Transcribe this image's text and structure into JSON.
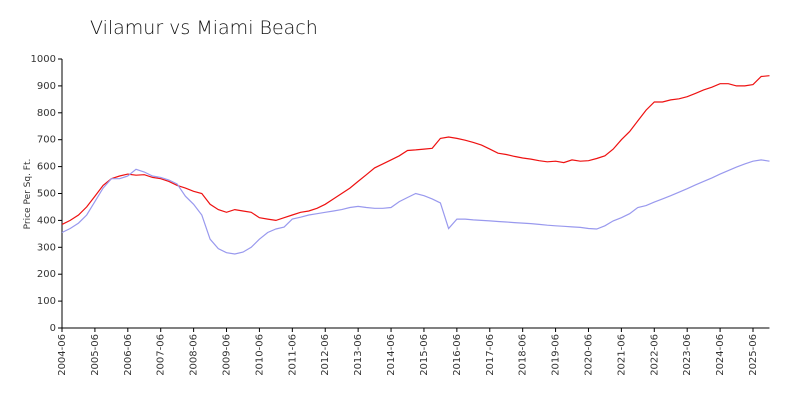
{
  "chart_data": {
    "type": "line",
    "title": "Vilamur vs Miami Beach",
    "y_label": "Price Per Sq. Ft.",
    "categories": [
      "2004-06",
      null,
      null,
      null,
      "2005-06",
      null,
      null,
      null,
      "2006-06",
      null,
      null,
      null,
      "2007-06",
      null,
      null,
      null,
      "2008-06",
      null,
      null,
      null,
      "2009-06",
      null,
      null,
      null,
      "2010-06",
      null,
      null,
      null,
      "2011-06",
      null,
      null,
      null,
      "2012-06",
      null,
      null,
      null,
      "2013-06",
      null,
      null,
      null,
      "2014-06",
      null,
      null,
      null,
      "2015-06",
      null,
      null,
      null,
      "2016-06",
      null,
      null,
      null,
      "2017-06",
      null,
      null,
      null,
      "2018-06",
      null,
      null,
      null,
      "2019-06",
      null,
      null,
      null,
      "2020-06",
      null,
      null,
      null,
      "2021-06",
      null,
      null,
      null,
      "2022-06",
      null,
      null,
      null,
      "2023-06",
      null,
      null,
      null,
      "2024-06",
      null,
      null,
      null,
      "2025-06",
      null,
      null
    ],
    "series": [
      {
        "color": "#ee1111",
        "values": [
          385,
          400,
          420,
          450,
          490,
          530,
          555,
          565,
          572,
          568,
          570,
          560,
          555,
          545,
          530,
          520,
          508,
          500,
          460,
          440,
          430,
          440,
          435,
          430,
          410,
          405,
          400,
          410,
          420,
          430,
          435,
          445,
          460,
          480,
          500,
          520,
          545,
          570,
          595,
          610,
          625,
          640,
          660,
          662,
          665,
          668,
          705,
          710,
          705,
          698,
          690,
          680,
          665,
          650,
          645,
          638,
          632,
          628,
          622,
          618,
          620,
          615,
          625,
          620,
          622,
          630,
          640,
          665,
          700,
          730,
          770,
          810,
          840,
          840,
          848,
          852,
          860,
          872,
          885,
          895,
          908,
          908,
          900,
          900,
          905,
          935,
          938
        ]
      },
      {
        "color": "#9999ee",
        "values": [
          355,
          370,
          390,
          420,
          470,
          520,
          555,
          555,
          565,
          590,
          580,
          565,
          560,
          550,
          535,
          490,
          460,
          420,
          330,
          295,
          280,
          275,
          282,
          300,
          330,
          355,
          368,
          375,
          405,
          412,
          420,
          425,
          430,
          435,
          440,
          448,
          452,
          448,
          445,
          445,
          448,
          470,
          485,
          500,
          492,
          480,
          465,
          370,
          405,
          405,
          402,
          400,
          398,
          396,
          394,
          392,
          390,
          388,
          385,
          382,
          380,
          378,
          376,
          374,
          370,
          368,
          380,
          398,
          410,
          425,
          448,
          455,
          468,
          480,
          492,
          505,
          518,
          532,
          545,
          558,
          572,
          585,
          598,
          610,
          620,
          625,
          620
        ]
      }
    ],
    "ylim": [
      0,
      1000
    ],
    "yticks": [
      0,
      100,
      200,
      300,
      400,
      500,
      600,
      700,
      800,
      900,
      1000
    ],
    "grid": false
  }
}
